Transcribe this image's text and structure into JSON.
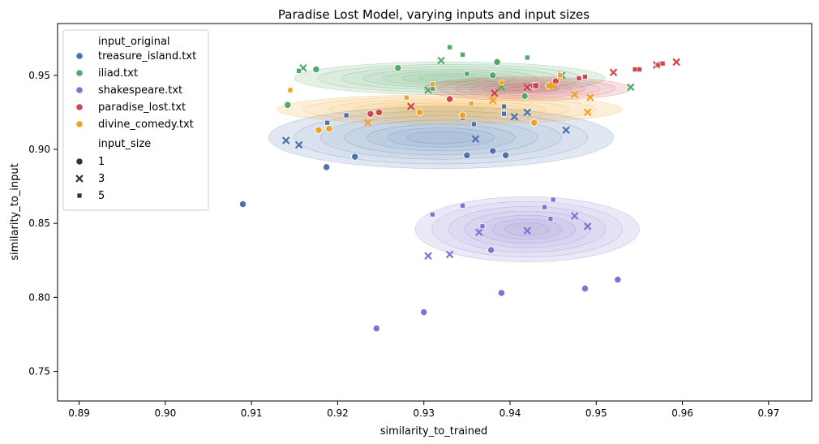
{
  "chart_data": {
    "type": "scatter",
    "title": "Paradise Lost Model, varying inputs and input sizes",
    "xlabel": "similarity_to_trained",
    "ylabel": "similarity_to_input",
    "xlim": [
      0.8875,
      0.975
    ],
    "ylim": [
      0.73,
      0.985
    ],
    "xticks": [
      "0.89",
      "0.90",
      "0.91",
      "0.92",
      "0.93",
      "0.94",
      "0.95",
      "0.96",
      "0.97"
    ],
    "xtick_values": [
      0.89,
      0.9,
      0.91,
      0.92,
      0.93,
      0.94,
      0.95,
      0.96,
      0.97
    ],
    "yticks": [
      "0.75",
      "0.80",
      "0.85",
      "0.90",
      "0.95"
    ],
    "ytick_values": [
      0.75,
      0.8,
      0.85,
      0.9,
      0.95
    ],
    "grid": false,
    "legend_position": "top-left",
    "legend": {
      "hue_title": "input_original",
      "size_title": "input_size",
      "sizes": [
        {
          "label": "1",
          "marker": "circle"
        },
        {
          "label": "3",
          "marker": "x"
        },
        {
          "label": "5",
          "marker": "square"
        }
      ]
    },
    "kde_overlay": true,
    "series": [
      {
        "name": "treasure_island.txt",
        "color": "#4c72b0",
        "kde": {
          "center": [
            0.932,
            0.908
          ],
          "spread": [
            0.02,
            0.021
          ]
        },
        "points": [
          {
            "x": 0.909,
            "y": 0.863,
            "size": 1
          },
          {
            "x": 0.9187,
            "y": 0.888,
            "size": 1
          },
          {
            "x": 0.922,
            "y": 0.895,
            "size": 1
          },
          {
            "x": 0.935,
            "y": 0.896,
            "size": 1
          },
          {
            "x": 0.938,
            "y": 0.899,
            "size": 1
          },
          {
            "x": 0.9395,
            "y": 0.896,
            "size": 1
          },
          {
            "x": 0.914,
            "y": 0.906,
            "size": 3
          },
          {
            "x": 0.9155,
            "y": 0.903,
            "size": 3
          },
          {
            "x": 0.936,
            "y": 0.907,
            "size": 3
          },
          {
            "x": 0.9405,
            "y": 0.922,
            "size": 3
          },
          {
            "x": 0.942,
            "y": 0.925,
            "size": 3
          },
          {
            "x": 0.9465,
            "y": 0.913,
            "size": 3
          },
          {
            "x": 0.9188,
            "y": 0.918,
            "size": 5
          },
          {
            "x": 0.921,
            "y": 0.923,
            "size": 5
          },
          {
            "x": 0.9345,
            "y": 0.921,
            "size": 5
          },
          {
            "x": 0.9358,
            "y": 0.917,
            "size": 5
          },
          {
            "x": 0.9393,
            "y": 0.924,
            "size": 5
          },
          {
            "x": 0.9393,
            "y": 0.929,
            "size": 5
          }
        ]
      },
      {
        "name": "iliad.txt",
        "color": "#55a868",
        "kde": {
          "center": [
            0.933,
            0.948
          ],
          "spread": [
            0.018,
            0.011
          ]
        },
        "points": [
          {
            "x": 0.9142,
            "y": 0.93,
            "size": 1
          },
          {
            "x": 0.9175,
            "y": 0.954,
            "size": 1
          },
          {
            "x": 0.927,
            "y": 0.955,
            "size": 1
          },
          {
            "x": 0.938,
            "y": 0.95,
            "size": 1
          },
          {
            "x": 0.9385,
            "y": 0.959,
            "size": 1
          },
          {
            "x": 0.9417,
            "y": 0.936,
            "size": 1
          },
          {
            "x": 0.916,
            "y": 0.955,
            "size": 3
          },
          {
            "x": 0.9305,
            "y": 0.94,
            "size": 3
          },
          {
            "x": 0.932,
            "y": 0.96,
            "size": 3
          },
          {
            "x": 0.939,
            "y": 0.942,
            "size": 3
          },
          {
            "x": 0.946,
            "y": 0.95,
            "size": 3
          },
          {
            "x": 0.954,
            "y": 0.942,
            "size": 3
          },
          {
            "x": 0.9155,
            "y": 0.953,
            "size": 5
          },
          {
            "x": 0.931,
            "y": 0.941,
            "size": 5
          },
          {
            "x": 0.933,
            "y": 0.969,
            "size": 5
          },
          {
            "x": 0.9345,
            "y": 0.964,
            "size": 5
          },
          {
            "x": 0.935,
            "y": 0.951,
            "size": 5
          },
          {
            "x": 0.942,
            "y": 0.962,
            "size": 5
          }
        ]
      },
      {
        "name": "shakespeare.txt",
        "color": "#8172d2",
        "kde": {
          "center": [
            0.942,
            0.846
          ],
          "spread": [
            0.013,
            0.022
          ]
        },
        "points": [
          {
            "x": 0.9245,
            "y": 0.779,
            "size": 1
          },
          {
            "x": 0.93,
            "y": 0.79,
            "size": 1
          },
          {
            "x": 0.9378,
            "y": 0.832,
            "size": 1
          },
          {
            "x": 0.939,
            "y": 0.803,
            "size": 1
          },
          {
            "x": 0.9487,
            "y": 0.806,
            "size": 1
          },
          {
            "x": 0.9525,
            "y": 0.812,
            "size": 1
          },
          {
            "x": 0.9305,
            "y": 0.828,
            "size": 3
          },
          {
            "x": 0.933,
            "y": 0.829,
            "size": 3
          },
          {
            "x": 0.9364,
            "y": 0.844,
            "size": 3
          },
          {
            "x": 0.942,
            "y": 0.845,
            "size": 3
          },
          {
            "x": 0.9475,
            "y": 0.855,
            "size": 3
          },
          {
            "x": 0.949,
            "y": 0.848,
            "size": 3
          },
          {
            "x": 0.931,
            "y": 0.856,
            "size": 5
          },
          {
            "x": 0.9345,
            "y": 0.862,
            "size": 5
          },
          {
            "x": 0.9368,
            "y": 0.848,
            "size": 5
          },
          {
            "x": 0.944,
            "y": 0.861,
            "size": 5
          },
          {
            "x": 0.9447,
            "y": 0.853,
            "size": 5
          },
          {
            "x": 0.945,
            "y": 0.866,
            "size": 5
          }
        ]
      },
      {
        "name": "paradise_lost.txt",
        "color": "#d0454d",
        "kde": {
          "center": [
            0.942,
            0.941
          ],
          "spread": [
            0.012,
            0.008
          ]
        },
        "points": [
          {
            "x": 0.9238,
            "y": 0.924,
            "size": 1
          },
          {
            "x": 0.9248,
            "y": 0.925,
            "size": 1
          },
          {
            "x": 0.933,
            "y": 0.934,
            "size": 1
          },
          {
            "x": 0.9427,
            "y": 0.943,
            "size": 1
          },
          {
            "x": 0.943,
            "y": 0.943,
            "size": 1
          },
          {
            "x": 0.9453,
            "y": 0.946,
            "size": 1
          },
          {
            "x": 0.9285,
            "y": 0.929,
            "size": 3
          },
          {
            "x": 0.9382,
            "y": 0.938,
            "size": 3
          },
          {
            "x": 0.942,
            "y": 0.942,
            "size": 3
          },
          {
            "x": 0.952,
            "y": 0.952,
            "size": 3
          },
          {
            "x": 0.957,
            "y": 0.957,
            "size": 3
          },
          {
            "x": 0.9593,
            "y": 0.959,
            "size": 3
          },
          {
            "x": 0.948,
            "y": 0.948,
            "size": 5
          },
          {
            "x": 0.9487,
            "y": 0.949,
            "size": 5
          },
          {
            "x": 0.9545,
            "y": 0.954,
            "size": 5
          },
          {
            "x": 0.955,
            "y": 0.954,
            "size": 5
          },
          {
            "x": 0.9572,
            "y": 0.957,
            "size": 5
          },
          {
            "x": 0.9577,
            "y": 0.958,
            "size": 5
          }
        ]
      },
      {
        "name": "divine_comedy.txt",
        "color": "#f2a21e",
        "kde": {
          "center": [
            0.933,
            0.927
          ],
          "spread": [
            0.02,
            0.01
          ]
        },
        "points": [
          {
            "x": 0.9178,
            "y": 0.913,
            "size": 1
          },
          {
            "x": 0.919,
            "y": 0.914,
            "size": 1
          },
          {
            "x": 0.9295,
            "y": 0.925,
            "size": 1
          },
          {
            "x": 0.9345,
            "y": 0.923,
            "size": 1
          },
          {
            "x": 0.9428,
            "y": 0.918,
            "size": 1
          },
          {
            "x": 0.9445,
            "y": 0.943,
            "size": 1
          },
          {
            "x": 0.9235,
            "y": 0.918,
            "size": 3
          },
          {
            "x": 0.938,
            "y": 0.933,
            "size": 3
          },
          {
            "x": 0.945,
            "y": 0.943,
            "size": 3
          },
          {
            "x": 0.9475,
            "y": 0.937,
            "size": 3
          },
          {
            "x": 0.949,
            "y": 0.925,
            "size": 3
          },
          {
            "x": 0.9493,
            "y": 0.935,
            "size": 3
          },
          {
            "x": 0.9145,
            "y": 0.94,
            "size": 5
          },
          {
            "x": 0.928,
            "y": 0.935,
            "size": 5
          },
          {
            "x": 0.931,
            "y": 0.944,
            "size": 5
          },
          {
            "x": 0.9355,
            "y": 0.931,
            "size": 5
          },
          {
            "x": 0.939,
            "y": 0.945,
            "size": 5
          },
          {
            "x": 0.9458,
            "y": 0.95,
            "size": 5
          }
        ]
      }
    ]
  }
}
